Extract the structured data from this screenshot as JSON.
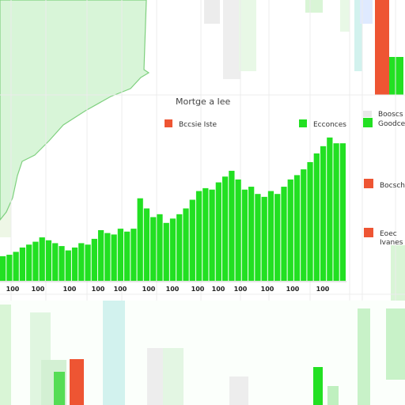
{
  "colors": {
    "series": "#22e022",
    "legend_red": "#ee5533",
    "map_fill": "#d8f5d8",
    "map_edge": "#7fd07f",
    "ghost_green": "#c8f2c8",
    "ghost_gray": "#e6e6e6",
    "ghost_teal": "#d2f2ee"
  },
  "icons": [
    "map-outline-icon"
  ],
  "chart_data": {
    "type": "bar",
    "title": "Mortge a Iee",
    "legend": [
      {
        "label": "Bccsie Iste",
        "color": "#ee5533"
      },
      {
        "label": "Ecconces",
        "color": "#22e022"
      }
    ],
    "side_legend": [
      {
        "label": "Booscs",
        "color": "#e8e8e8"
      },
      {
        "label": "Goodce",
        "color": "#22e022"
      },
      {
        "label": "Bocsch",
        "color": "#ee5533"
      },
      {
        "label": "Eoec",
        "color": "#ee5533"
      },
      {
        "label": "Ivanes",
        "color": ""
      }
    ],
    "x_tick_labels": [
      "100",
      "100",
      "100",
      "100",
      "100",
      "100",
      "100",
      "100",
      "100",
      "100",
      "100",
      "100",
      "100"
    ],
    "y_max": 100,
    "values": [
      17,
      18,
      20,
      23,
      25,
      27,
      30,
      28,
      26,
      24,
      21,
      23,
      26,
      25,
      29,
      35,
      33,
      32,
      36,
      34,
      36,
      57,
      50,
      44,
      46,
      40,
      43,
      46,
      50,
      56,
      62,
      64,
      63,
      68,
      72,
      76,
      70,
      63,
      65,
      60,
      58,
      62,
      60,
      65,
      70,
      73,
      77,
      82,
      88,
      93,
      99,
      95,
      95
    ]
  }
}
